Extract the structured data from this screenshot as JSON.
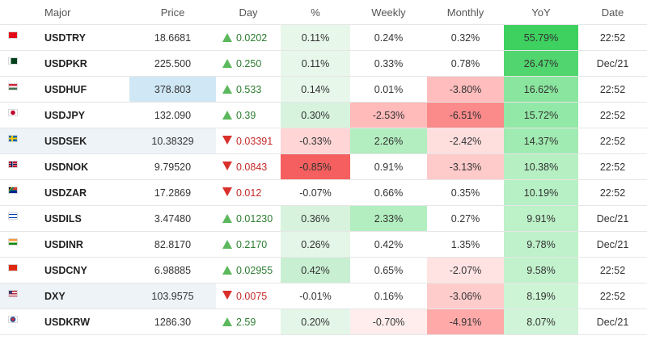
{
  "headers": {
    "major": "Major",
    "price": "Price",
    "day": "Day",
    "pct": "%",
    "weekly": "Weekly",
    "monthly": "Monthly",
    "yoy": "YoY",
    "date": "Date"
  },
  "colors": {
    "up_text": "#2e7d32",
    "down_text": "#c62828",
    "up_triangle": "#5cb85c",
    "down_triangle": "#d9302b"
  },
  "rows": [
    {
      "symbol": "USDTRY",
      "flag": "tr-flag",
      "price": "18.6681",
      "day": "0.0202",
      "day_dir": "up",
      "pct": "0.11%",
      "pct_bg": "#e7f7ea",
      "weekly": "0.24%",
      "weekly_bg": "#ffffff",
      "monthly": "0.32%",
      "monthly_bg": "#ffffff",
      "yoy": "55.79%",
      "yoy_bg": "#3ed160",
      "date": "22:52"
    },
    {
      "symbol": "USDPKR",
      "flag": "pk-flag",
      "price": "225.500",
      "day": "0.250",
      "day_dir": "up",
      "pct": "0.11%",
      "pct_bg": "#e7f7ea",
      "weekly": "0.33%",
      "weekly_bg": "#ffffff",
      "monthly": "0.78%",
      "monthly_bg": "#ffffff",
      "yoy": "26.47%",
      "yoy_bg": "#51d66f",
      "date": "Dec/21"
    },
    {
      "symbol": "USDHUF",
      "flag": "hu-flag",
      "price": "378.803",
      "day": "0.533",
      "day_dir": "up",
      "pct": "0.14%",
      "pct_bg": "#e7f7ea",
      "weekly": "0.01%",
      "weekly_bg": "#ffffff",
      "monthly": "-3.80%",
      "monthly_bg": "#ffbdbd",
      "yoy": "16.62%",
      "yoy_bg": "#8ae69f",
      "date": "22:52",
      "selected": true
    },
    {
      "symbol": "USDJPY",
      "flag": "jp-flag",
      "price": "132.090",
      "day": "0.39",
      "day_dir": "up",
      "pct": "0.30%",
      "pct_bg": "#d7f3dd",
      "weekly": "-2.53%",
      "weekly_bg": "#ffbaba",
      "monthly": "-6.51%",
      "monthly_bg": "#fb8a8a",
      "yoy": "15.72%",
      "yoy_bg": "#92e8a6",
      "date": "22:52"
    },
    {
      "symbol": "USDSEK",
      "flag": "se-flag",
      "price": "10.38329",
      "day": "0.03391",
      "day_dir": "down",
      "pct": "-0.33%",
      "pct_bg": "#ffd5d5",
      "weekly": "2.26%",
      "weekly_bg": "#b3eec0",
      "monthly": "-2.42%",
      "monthly_bg": "#ffdede",
      "yoy": "14.37%",
      "yoy_bg": "#a0ebb1",
      "date": "22:52",
      "shade": true
    },
    {
      "symbol": "USDNOK",
      "flag": "no-flag",
      "price": "9.79520",
      "day": "0.0843",
      "day_dir": "down",
      "pct": "-0.85%",
      "pct_bg": "#f55f5f",
      "weekly": "0.91%",
      "weekly_bg": "#ffffff",
      "monthly": "-3.13%",
      "monthly_bg": "#ffcaca",
      "yoy": "10.38%",
      "yoy_bg": "#b5efc2",
      "date": "22:52"
    },
    {
      "symbol": "USDZAR",
      "flag": "za-flag",
      "price": "17.2869",
      "day": "0.012",
      "day_dir": "down",
      "pct": "-0.07%",
      "pct_bg": "#ffffff",
      "weekly": "0.66%",
      "weekly_bg": "#ffffff",
      "monthly": "0.35%",
      "monthly_bg": "#ffffff",
      "yoy": "10.19%",
      "yoy_bg": "#b7f0c4",
      "date": "22:52"
    },
    {
      "symbol": "USDILS",
      "flag": "il-flag",
      "price": "3.47480",
      "day": "0.01230",
      "day_dir": "up",
      "pct": "0.36%",
      "pct_bg": "#d7f3dd",
      "weekly": "2.33%",
      "weekly_bg": "#b3eec0",
      "monthly": "0.27%",
      "monthly_bg": "#ffffff",
      "yoy": "9.91%",
      "yoy_bg": "#bdf1c8",
      "date": "Dec/21"
    },
    {
      "symbol": "USDINR",
      "flag": "in-flag",
      "price": "82.8170",
      "day": "0.2170",
      "day_dir": "up",
      "pct": "0.26%",
      "pct_bg": "#e3f6e7",
      "weekly": "0.42%",
      "weekly_bg": "#ffffff",
      "monthly": "1.35%",
      "monthly_bg": "#ffffff",
      "yoy": "9.78%",
      "yoy_bg": "#bff1ca",
      "date": "Dec/21"
    },
    {
      "symbol": "USDCNY",
      "flag": "cn-flag",
      "price": "6.98885",
      "day": "0.02955",
      "day_dir": "up",
      "pct": "0.42%",
      "pct_bg": "#c8efd2",
      "weekly": "0.65%",
      "weekly_bg": "#ffffff",
      "monthly": "-2.07%",
      "monthly_bg": "#ffe3e3",
      "yoy": "9.58%",
      "yoy_bg": "#c2f2cc",
      "date": "22:52"
    },
    {
      "symbol": "DXY",
      "flag": "us-flag",
      "price": "103.9575",
      "day": "0.0075",
      "day_dir": "down",
      "pct": "-0.01%",
      "pct_bg": "#ffffff",
      "weekly": "0.16%",
      "weekly_bg": "#ffffff",
      "monthly": "-3.06%",
      "monthly_bg": "#ffcccc",
      "yoy": "8.19%",
      "yoy_bg": "#cdf4d5",
      "date": "22:52",
      "shade": true
    },
    {
      "symbol": "USDKRW",
      "flag": "kr-flag",
      "price": "1286.30",
      "day": "2.59",
      "day_dir": "up",
      "pct": "0.20%",
      "pct_bg": "#e3f6e7",
      "weekly": "-0.70%",
      "weekly_bg": "#ffeded",
      "monthly": "-4.91%",
      "monthly_bg": "#ffa9a9",
      "yoy": "8.07%",
      "yoy_bg": "#cff4d7",
      "date": "Dec/21"
    }
  ]
}
